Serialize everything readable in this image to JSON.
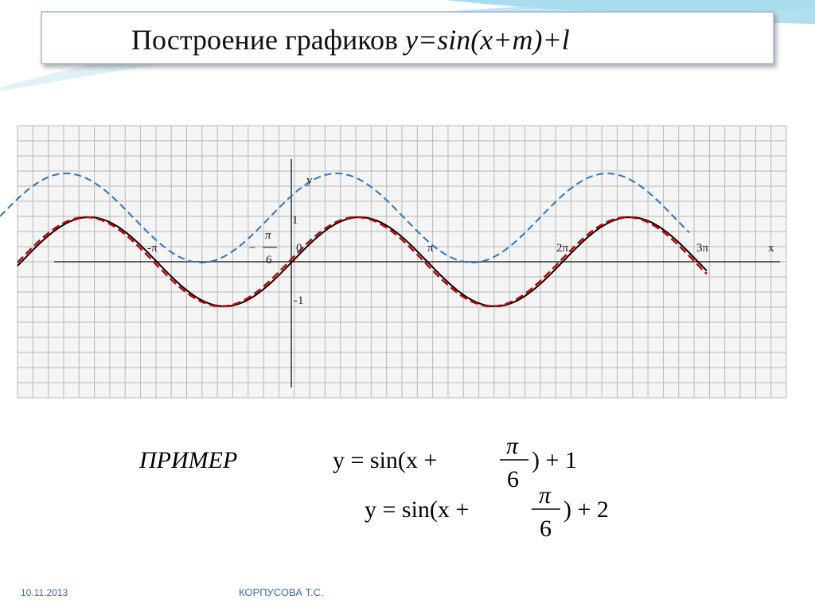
{
  "header": {
    "title": "Построение графиков ",
    "formula": "y=sin(x+m)+l"
  },
  "graph": {
    "axis_labels": {
      "x": "x",
      "y": "y"
    },
    "tick_labels": {
      "minus_pi": "-π",
      "zero": "0",
      "pi": "π",
      "two_pi": "2π",
      "three_pi": "3π",
      "one": "1",
      "minus_one": "-1"
    },
    "marked_point": {
      "sign": "−",
      "numerator": "π",
      "denominator": "6"
    }
  },
  "example": {
    "label": "ПРИМЕР",
    "formulas": [
      {
        "lhs": "y = sin(x + ",
        "numerator": "π",
        "denominator": "6",
        "rhs": ") + 1"
      },
      {
        "lhs": "y = sin(x + ",
        "numerator": "π",
        "denominator": "6",
        "rhs": ") + 2"
      }
    ]
  },
  "footer": {
    "date": "10.11.2013",
    "author": "КОРПУСОВА Т.С."
  }
}
